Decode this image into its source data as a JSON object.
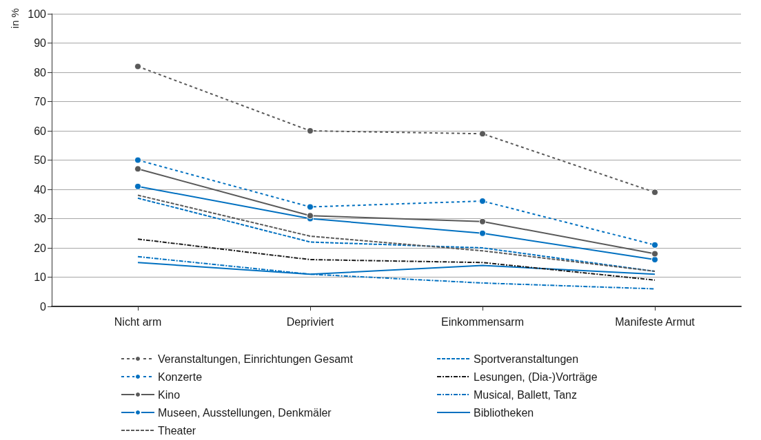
{
  "chart_data": {
    "type": "line",
    "ylabel": "in %",
    "categories": [
      "Nicht arm",
      "Depriviert",
      "Einkommensarm",
      "Manifeste Armut"
    ],
    "ylim": [
      0,
      100
    ],
    "yticks": [
      0,
      10,
      20,
      30,
      40,
      50,
      60,
      70,
      80,
      90,
      100
    ],
    "grid": "y",
    "legend": "bottom",
    "series": [
      {
        "name": "Veranstaltungen, Einrichtungen Gesamt",
        "color": "#595959",
        "line_style": "dotted",
        "marker": "circle",
        "values": [
          82,
          60,
          59,
          39
        ]
      },
      {
        "name": "Konzerte",
        "color": "#0070c0",
        "line_style": "dotted",
        "marker": "circle",
        "values": [
          50,
          34,
          36,
          21
        ]
      },
      {
        "name": "Kino",
        "color": "#595959",
        "line_style": "solid",
        "marker": "circle",
        "values": [
          47,
          31,
          29,
          18
        ]
      },
      {
        "name": "Museen, Ausstellungen, Denkmäler",
        "color": "#0070c0",
        "line_style": "solid",
        "marker": "circle",
        "values": [
          41,
          30,
          25,
          16
        ]
      },
      {
        "name": "Theater",
        "color": "#595959",
        "line_style": "dashed",
        "marker": "none",
        "values": [
          38,
          24,
          19,
          12
        ]
      },
      {
        "name": "Sportveranstaltungen",
        "color": "#0070c0",
        "line_style": "dashed",
        "marker": "none",
        "values": [
          37,
          22,
          20,
          12
        ]
      },
      {
        "name": "Lesungen, (Dia-)Vorträge",
        "color": "#1a1a1a",
        "line_style": "dashdot",
        "marker": "none",
        "values": [
          23,
          16,
          15,
          9
        ]
      },
      {
        "name": "Musical, Ballett, Tanz",
        "color": "#0070c0",
        "line_style": "dashdot",
        "marker": "none",
        "values": [
          17,
          11,
          8,
          6
        ]
      },
      {
        "name": "Bibliotheken",
        "color": "#0070c0",
        "line_style": "solid",
        "marker": "none",
        "values": [
          15,
          11,
          14,
          11
        ]
      }
    ]
  }
}
